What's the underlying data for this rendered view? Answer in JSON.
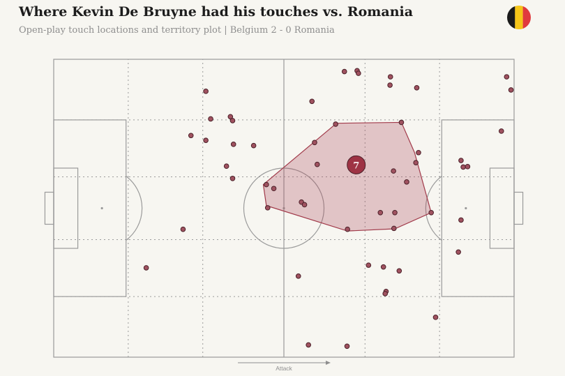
{
  "title": "Where Kevin De Bruyne had his touches vs. Romania",
  "subtitle": "Open-play touch locations and territory plot |  Belgium 2 - 0 Romania",
  "flag": {
    "icon": "belgium-flag-icon",
    "colors": [
      "#1a1a1a",
      "#f5c518",
      "#e03a3e"
    ]
  },
  "attack_label": "Attack",
  "colors": {
    "touch_fill": "#a05260",
    "touch_stroke": "#4a2028",
    "territory_fill": "rgba(170, 70, 85, 0.28)",
    "territory_stroke": "#a13a4a",
    "marker_fill": "#9e3344",
    "pitch_line": "#9a9a9a",
    "background": "#f7f6f1"
  },
  "chart_data": {
    "type": "scatter",
    "pitch": {
      "length": 105,
      "width": 68
    },
    "player_marker": {
      "label": "7",
      "x": 69,
      "y": 43.9
    },
    "territory_hull": [
      [
        64.5,
        53.4
      ],
      [
        79.3,
        53.6
      ],
      [
        82.3,
        46.7
      ],
      [
        86.1,
        33.0
      ],
      [
        77.8,
        29.3
      ],
      [
        67.0,
        28.8
      ],
      [
        48.5,
        34.6
      ],
      [
        47.8,
        39.4
      ]
    ],
    "touches": [
      [
        66.3,
        65.2
      ],
      [
        69.2,
        65.4
      ],
      [
        69.5,
        64.8
      ],
      [
        76.8,
        64.0
      ],
      [
        76.7,
        62.1
      ],
      [
        82.8,
        61.5
      ],
      [
        103.3,
        64.0
      ],
      [
        104.3,
        61.0
      ],
      [
        58.9,
        58.4
      ],
      [
        34.7,
        60.7
      ],
      [
        35.8,
        54.4
      ],
      [
        40.3,
        54.9
      ],
      [
        40.8,
        54.0
      ],
      [
        31.3,
        50.6
      ],
      [
        34.7,
        49.5
      ],
      [
        41.0,
        48.6
      ],
      [
        45.6,
        48.3
      ],
      [
        64.3,
        53.2
      ],
      [
        79.3,
        53.6
      ],
      [
        59.5,
        49.0
      ],
      [
        83.2,
        46.7
      ],
      [
        102.1,
        51.6
      ],
      [
        39.4,
        43.6
      ],
      [
        40.8,
        40.8
      ],
      [
        60.1,
        44.0
      ],
      [
        48.5,
        39.4
      ],
      [
        50.2,
        38.5
      ],
      [
        77.5,
        42.5
      ],
      [
        82.6,
        44.4
      ],
      [
        80.5,
        40.0
      ],
      [
        56.5,
        35.4
      ],
      [
        57.2,
        34.8
      ],
      [
        48.8,
        34.1
      ],
      [
        74.5,
        33.0
      ],
      [
        77.8,
        33.0
      ],
      [
        86.1,
        33.0
      ],
      [
        92.9,
        44.9
      ],
      [
        93.4,
        43.4
      ],
      [
        94.4,
        43.5
      ],
      [
        92.9,
        31.3
      ],
      [
        92.3,
        24.0
      ],
      [
        29.5,
        29.2
      ],
      [
        67.0,
        29.2
      ],
      [
        77.6,
        29.4
      ],
      [
        71.8,
        21.0
      ],
      [
        75.2,
        20.6
      ],
      [
        78.8,
        19.7
      ],
      [
        21.1,
        20.4
      ],
      [
        55.8,
        18.5
      ],
      [
        75.8,
        15.0
      ],
      [
        75.6,
        14.5
      ],
      [
        87.1,
        9.1
      ],
      [
        58.1,
        2.8
      ],
      [
        66.9,
        2.5
      ]
    ]
  }
}
